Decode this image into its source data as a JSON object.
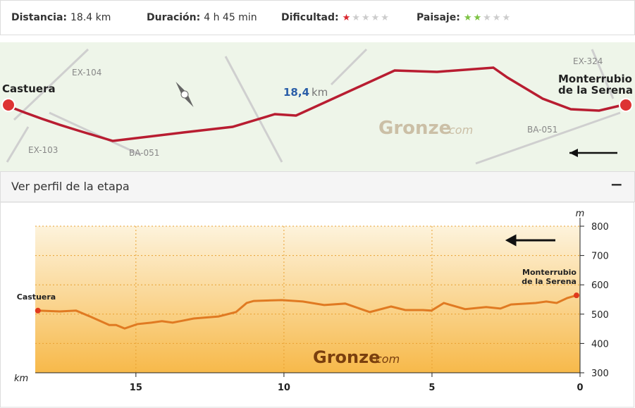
{
  "stats": [
    {
      "label": "Distancia:",
      "value": "18.4 km"
    },
    {
      "label": "Duración:",
      "value": "4 h 45 min"
    },
    {
      "label": "Dificultad:",
      "rating": 1,
      "max": 5,
      "color": "#d9262e"
    },
    {
      "label": "Paisaje:",
      "rating": 2,
      "max": 5,
      "color": "#7cc242"
    }
  ],
  "map": {
    "start": "Castuera",
    "end": [
      "Monterrubio",
      "de la Serena"
    ],
    "distance": {
      "number": "18,4",
      "unit": "km"
    },
    "roads": [
      "EX-104",
      "EX-103",
      "BA-051",
      "BA-051",
      "EX-324"
    ],
    "watermark": {
      "main": "Gronze",
      "suffix": "com"
    }
  },
  "profile_panel": {
    "title": "Ver perfil de la etapa",
    "toggle": "−"
  },
  "chart_data": {
    "type": "line",
    "x_label": "km",
    "y_label": "m",
    "x": [
      18.31,
      17.57,
      17.02,
      16.5,
      15.9,
      15.67,
      15.38,
      14.95,
      14.48,
      14.12,
      13.76,
      13.05,
      12.21,
      11.62,
      11.26,
      11.02,
      10.07,
      9.36,
      8.64,
      7.93,
      7.1,
      6.38,
      5.9,
      5.31,
      5.02,
      4.6,
      3.88,
      3.17,
      2.69,
      2.33,
      1.5,
      1.14,
      0.79,
      0.43,
      0.12
    ],
    "values": [
      512,
      509,
      512,
      490,
      463,
      463,
      451,
      466,
      471,
      476,
      471,
      485,
      492,
      507,
      538,
      545,
      548,
      543,
      531,
      536,
      507,
      526,
      514,
      514,
      512,
      538,
      517,
      524,
      519,
      533,
      538,
      543,
      538,
      555,
      564
    ],
    "color": "#e07a22",
    "xlim": [
      18.4,
      0
    ],
    "xticks": [
      15,
      10,
      5,
      0
    ],
    "ylim": [
      300,
      800
    ],
    "yticks": [
      300,
      400,
      500,
      600,
      700,
      800
    ],
    "grid": true,
    "annotations": [
      {
        "text": [
          "Castuera"
        ],
        "x": 18.31,
        "y": 512
      },
      {
        "text": [
          "Monterrubio",
          "de la Serena"
        ],
        "x": 0.12,
        "y": 564
      }
    ],
    "watermark": {
      "main": "Gronze",
      "suffix": "com"
    }
  }
}
